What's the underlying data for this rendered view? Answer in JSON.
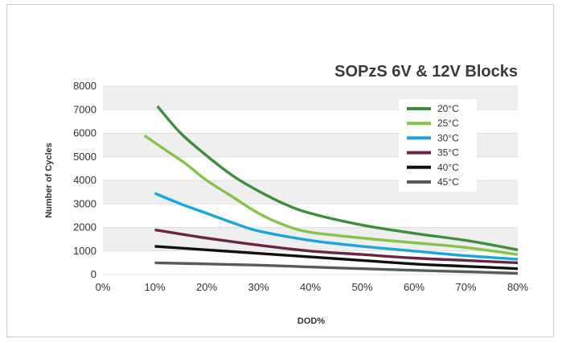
{
  "chart_data": {
    "type": "line",
    "title": "SOPzS 6V & 12V Blocks",
    "xlabel": "DOD%",
    "ylabel": "Number of Cycles",
    "xlim": [
      0,
      80
    ],
    "ylim": [
      0,
      8000
    ],
    "x_ticks": [
      "0%",
      "10%",
      "20%",
      "30%",
      "40%",
      "50%",
      "60%",
      "70%",
      "80%"
    ],
    "y_ticks": [
      "0",
      "1000",
      "2000",
      "3000",
      "4000",
      "5000",
      "6000",
      "7000",
      "8000"
    ],
    "grid": "alternating horizontal bands",
    "legend_position": "top-right",
    "series": [
      {
        "name": "20°C",
        "color": "#3e8e3e",
        "x": [
          10.5,
          15,
          20,
          25,
          30,
          35,
          40,
          50,
          60,
          70,
          80
        ],
        "y": [
          7150,
          6000,
          5050,
          4200,
          3550,
          3000,
          2600,
          2100,
          1750,
          1450,
          1050
        ]
      },
      {
        "name": "25°C",
        "color": "#86c34a",
        "x": [
          8,
          12,
          16,
          20,
          25,
          30,
          35,
          40,
          50,
          60,
          70,
          80
        ],
        "y": [
          5900,
          5300,
          4700,
          4000,
          3300,
          2600,
          2100,
          1800,
          1550,
          1350,
          1150,
          850
        ]
      },
      {
        "name": "30°C",
        "color": "#1aa6d8",
        "x": [
          10,
          15,
          20,
          25,
          30,
          40,
          50,
          60,
          70,
          80
        ],
        "y": [
          3450,
          3000,
          2600,
          2200,
          1850,
          1450,
          1200,
          1000,
          800,
          650
        ]
      },
      {
        "name": "35°C",
        "color": "#6b2446",
        "x": [
          10,
          20,
          30,
          40,
          50,
          60,
          70,
          80
        ],
        "y": [
          1900,
          1550,
          1250,
          1000,
          850,
          700,
          600,
          500
        ]
      },
      {
        "name": "40°C",
        "color": "#111111",
        "x": [
          10,
          20,
          30,
          40,
          50,
          60,
          70,
          80
        ],
        "y": [
          1200,
          1050,
          900,
          750,
          600,
          450,
          350,
          250
        ]
      },
      {
        "name": "45°C",
        "color": "#5a5a5a",
        "x": [
          10,
          20,
          30,
          40,
          50,
          60,
          70,
          80
        ],
        "y": [
          500,
          450,
          400,
          320,
          250,
          180,
          120,
          50
        ]
      }
    ]
  }
}
